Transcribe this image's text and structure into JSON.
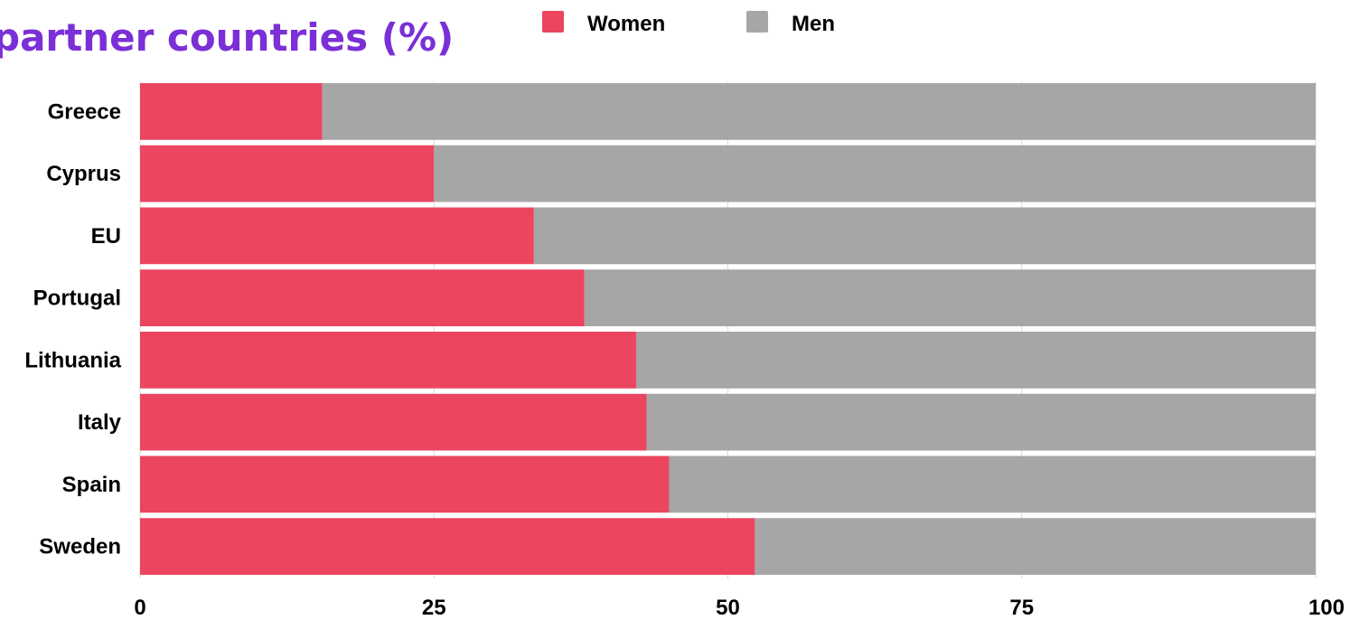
{
  "chart_data": {
    "type": "bar",
    "stacked": true,
    "orientation": "horizontal",
    "title": "partner countries (%)",
    "categories": [
      "Greece",
      "Cyprus",
      "EU",
      "Portugal",
      "Lithuania",
      "Italy",
      "Spain",
      "Sweden"
    ],
    "series": [
      {
        "name": "Women",
        "color": "#eb4560",
        "values": [
          15.5,
          25,
          33.5,
          37.8,
          42.2,
          43.1,
          45,
          52.3
        ]
      },
      {
        "name": "Men",
        "color": "#a6a6a6",
        "values": [
          84.5,
          75,
          66.5,
          62.2,
          57.8,
          56.9,
          55,
          47.7
        ]
      }
    ],
    "xlim": [
      0,
      100
    ],
    "xticks": [
      "0",
      "25",
      "50",
      "75",
      "100"
    ],
    "grid": true,
    "legend_position": "top",
    "colors": {
      "title": "#7b2fd6",
      "text": "#000000",
      "grid": "#d9d9d9"
    }
  }
}
